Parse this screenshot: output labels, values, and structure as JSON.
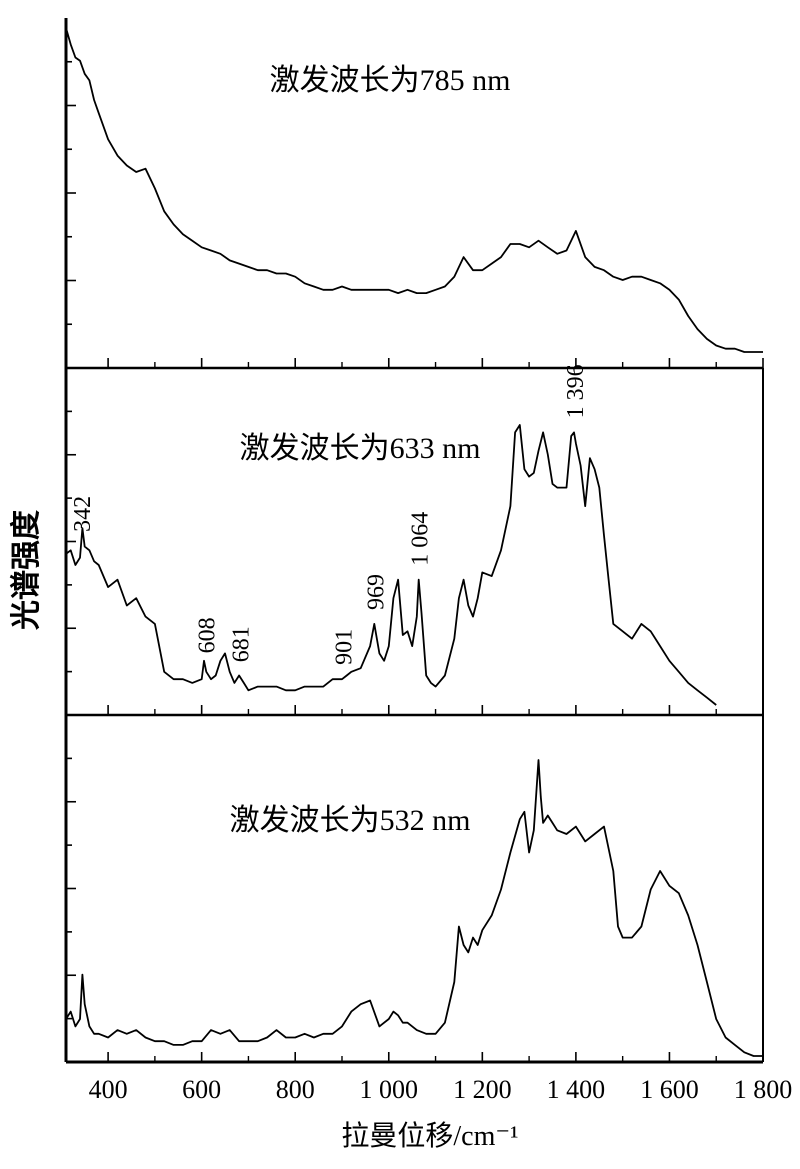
{
  "chart_data": {
    "type": "line",
    "xlabel": "拉曼位移/cm⁻¹",
    "ylabel": "光谱强度",
    "xlim": [
      310,
      1800
    ],
    "x_ticks": [
      400,
      600,
      800,
      1000,
      1200,
      1400,
      1600,
      1800
    ],
    "x_tick_labels": [
      "400",
      "600",
      "800",
      "1 000",
      "1 200",
      "1 400",
      "1 600",
      "1 800"
    ],
    "line_color": "#000000",
    "panels": [
      {
        "title": "激发波长为785 nm",
        "x": [
          310,
          320,
          330,
          340,
          350,
          360,
          370,
          380,
          390,
          400,
          420,
          440,
          460,
          480,
          500,
          520,
          540,
          560,
          580,
          600,
          620,
          640,
          660,
          680,
          700,
          720,
          740,
          760,
          780,
          800,
          820,
          840,
          860,
          880,
          900,
          920,
          940,
          960,
          980,
          1000,
          1020,
          1040,
          1060,
          1080,
          1100,
          1120,
          1140,
          1160,
          1180,
          1200,
          1220,
          1240,
          1260,
          1280,
          1300,
          1320,
          1340,
          1360,
          1380,
          1400,
          1420,
          1440,
          1460,
          1480,
          1500,
          1520,
          1540,
          1560,
          1580,
          1600,
          1620,
          1640,
          1660,
          1680,
          1700,
          1720,
          1740,
          1760,
          1780,
          1800
        ],
        "y": [
          100,
          95,
          91,
          90,
          86,
          84,
          78,
          74,
          70,
          66,
          61,
          58,
          56,
          57,
          51,
          44,
          40,
          37,
          35,
          33,
          32,
          31,
          29,
          28,
          27,
          26,
          26,
          25,
          25,
          24,
          22,
          21,
          20,
          20,
          21,
          20,
          20,
          20,
          20,
          20,
          19,
          20,
          19,
          19,
          20,
          21,
          24,
          30,
          26,
          26,
          28,
          30,
          34,
          34,
          33,
          35,
          33,
          31,
          32,
          38,
          30,
          27,
          26,
          24,
          23,
          24,
          24,
          23,
          22,
          20,
          17,
          12,
          8,
          5,
          3,
          2,
          2,
          1,
          1,
          1
        ]
      },
      {
        "title": "激发波长为633 nm",
        "peak_labels": [
          {
            "x": 342,
            "label": "342"
          },
          {
            "x": 608,
            "label": "608"
          },
          {
            "x": 681,
            "label": "681"
          },
          {
            "x": 901,
            "label": "901"
          },
          {
            "x": 969,
            "label": "969"
          },
          {
            "x": 1064,
            "label": "1 064"
          },
          {
            "x": 1396,
            "label": "1 396"
          }
        ],
        "x": [
          310,
          320,
          330,
          340,
          345,
          350,
          360,
          370,
          380,
          400,
          420,
          440,
          450,
          460,
          480,
          500,
          520,
          540,
          560,
          580,
          600,
          605,
          610,
          620,
          630,
          640,
          650,
          660,
          670,
          680,
          690,
          700,
          720,
          740,
          760,
          780,
          800,
          820,
          840,
          860,
          880,
          900,
          910,
          920,
          940,
          960,
          969,
          980,
          990,
          1000,
          1010,
          1020,
          1030,
          1040,
          1050,
          1060,
          1064,
          1070,
          1080,
          1090,
          1100,
          1120,
          1140,
          1150,
          1160,
          1170,
          1180,
          1190,
          1200,
          1220,
          1240,
          1260,
          1270,
          1280,
          1290,
          1300,
          1310,
          1320,
          1330,
          1340,
          1350,
          1360,
          1380,
          1390,
          1396,
          1400,
          1410,
          1420,
          1430,
          1440,
          1450,
          1460,
          1470,
          1480,
          1500,
          1520,
          1540,
          1560,
          1580,
          1600,
          1620,
          1640,
          1660,
          1680,
          1700
        ],
        "y": [
          37,
          38,
          34,
          36,
          44,
          39,
          38,
          35,
          34,
          28,
          30,
          23,
          24,
          25,
          20,
          18,
          5,
          3,
          3,
          2,
          3,
          8,
          5,
          3,
          4,
          8,
          10,
          5,
          2,
          4,
          2,
          0,
          1,
          1,
          1,
          0,
          0,
          1,
          1,
          1,
          3,
          3,
          4,
          5,
          6,
          12,
          18,
          10,
          8,
          12,
          25,
          30,
          15,
          16,
          12,
          20,
          30,
          21,
          4,
          2,
          1,
          4,
          14,
          25,
          30,
          23,
          20,
          25,
          32,
          31,
          38,
          50,
          70,
          72,
          60,
          58,
          59,
          65,
          70,
          64,
          56,
          55,
          55,
          69,
          70,
          67,
          61,
          50,
          63,
          60,
          55,
          42,
          30,
          18,
          16,
          14,
          18,
          16,
          12,
          8,
          5,
          2,
          0,
          -2,
          -4
        ]
      },
      {
        "title": "激发波长为532 nm",
        "x": [
          310,
          320,
          330,
          340,
          345,
          350,
          360,
          370,
          380,
          400,
          420,
          440,
          460,
          480,
          500,
          520,
          540,
          560,
          580,
          600,
          620,
          640,
          660,
          680,
          700,
          720,
          740,
          760,
          780,
          800,
          820,
          840,
          860,
          880,
          900,
          920,
          940,
          960,
          980,
          1000,
          1010,
          1020,
          1030,
          1040,
          1060,
          1080,
          1100,
          1120,
          1140,
          1150,
          1160,
          1170,
          1180,
          1190,
          1200,
          1220,
          1240,
          1260,
          1280,
          1290,
          1300,
          1310,
          1320,
          1325,
          1330,
          1340,
          1350,
          1360,
          1380,
          1400,
          1420,
          1440,
          1460,
          1480,
          1490,
          1500,
          1520,
          1540,
          1560,
          1580,
          1600,
          1620,
          1640,
          1660,
          1680,
          1700,
          1720,
          1740,
          1760,
          1780,
          1800
        ],
        "y": [
          10,
          12,
          8,
          10,
          22,
          14,
          8,
          6,
          6,
          5,
          7,
          6,
          7,
          5,
          4,
          4,
          3,
          3,
          4,
          4,
          7,
          6,
          7,
          4,
          4,
          4,
          5,
          7,
          5,
          5,
          6,
          5,
          6,
          6,
          8,
          12,
          14,
          15,
          8,
          10,
          12,
          11,
          9,
          9,
          7,
          6,
          6,
          9,
          20,
          35,
          30,
          28,
          32,
          30,
          34,
          38,
          45,
          55,
          64,
          66,
          55,
          61,
          80,
          70,
          63,
          65,
          63,
          61,
          60,
          62,
          58,
          60,
          62,
          50,
          35,
          32,
          32,
          35,
          45,
          50,
          46,
          44,
          38,
          30,
          20,
          10,
          5,
          3,
          1,
          0,
          0
        ]
      }
    ]
  }
}
